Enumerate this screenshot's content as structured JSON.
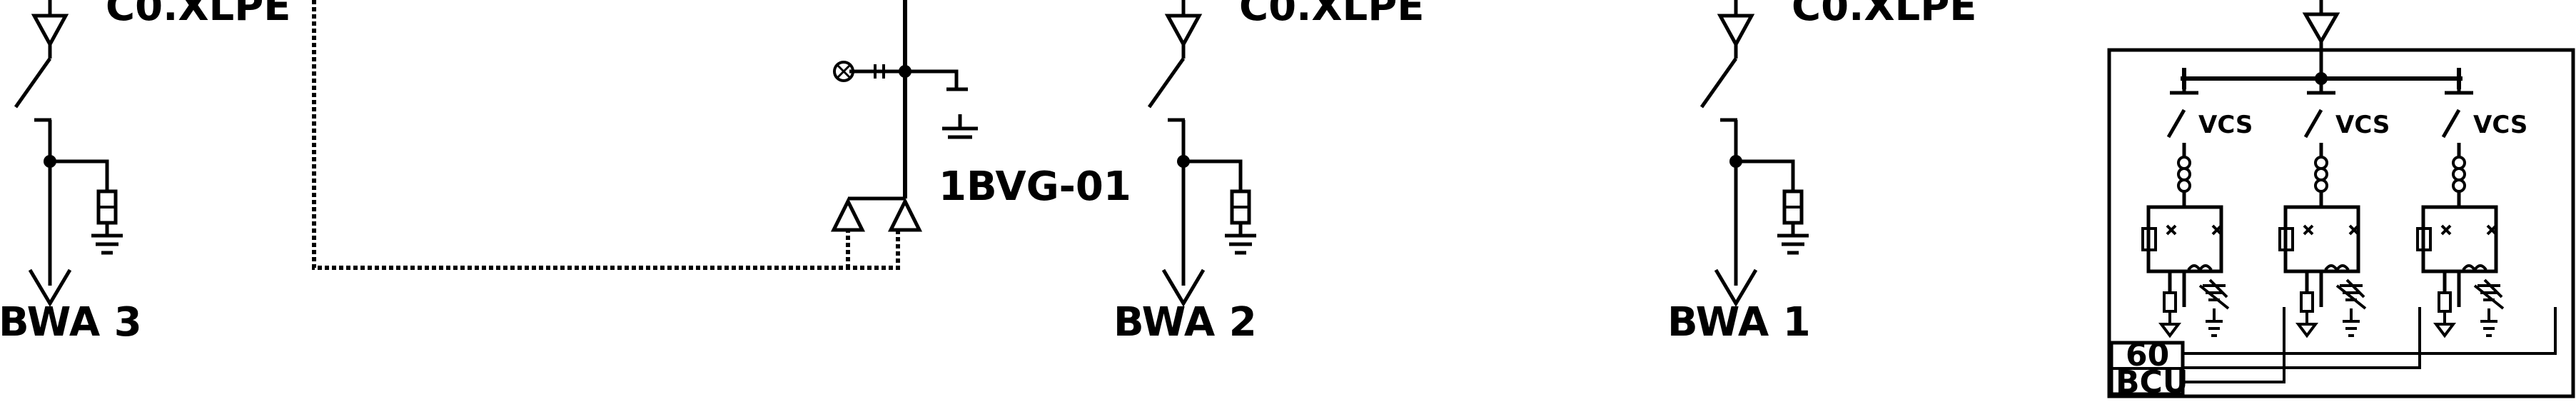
{
  "diagram": {
    "colors": {
      "line": "#000000",
      "background": "#ffffff"
    },
    "feeders": [
      {
        "id": "f3",
        "name_label": "BWA 3",
        "cable_label": "C0.XLPE"
      },
      {
        "id": "f2",
        "name_label": "BWA 2",
        "cable_label": "C0.XLPE"
      },
      {
        "id": "f1",
        "name_label": "BWA 1",
        "cable_label": "C0.XLPE"
      }
    ],
    "transformer_label": "1BVG-01",
    "switchgear": {
      "switch_labels": [
        "VCS",
        "VCS",
        "VCS"
      ],
      "panel_label_line1": "BCU",
      "panel_label_line2": "60"
    }
  }
}
